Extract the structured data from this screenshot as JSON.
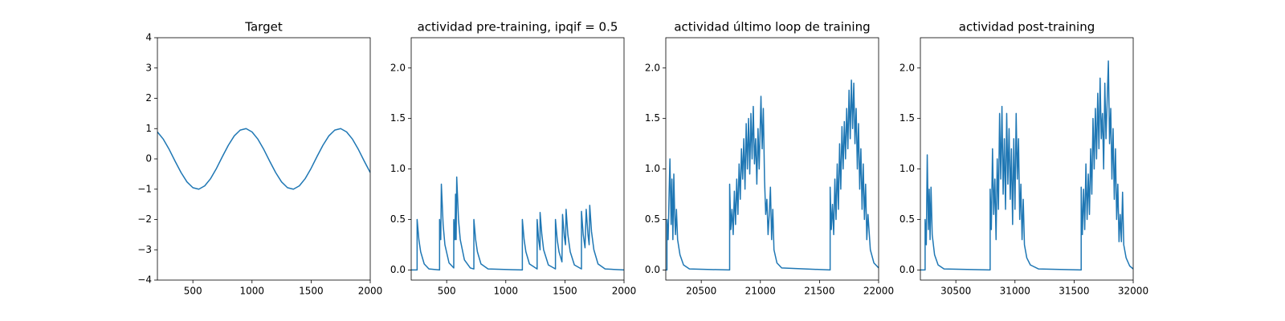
{
  "chart_data": [
    {
      "type": "line",
      "title": "Target",
      "color": "#1f77b4",
      "xlim": [
        200,
        2000
      ],
      "ylim": [
        -4,
        4
      ],
      "xticks": [
        500,
        1000,
        1500,
        2000
      ],
      "yticks": [
        {
          "value": -4,
          "label": "−4"
        },
        {
          "value": -3,
          "label": "−3"
        },
        {
          "value": -2,
          "label": "−2"
        },
        {
          "value": -1,
          "label": "−1"
        },
        0,
        1,
        2,
        3,
        4
      ],
      "x": [
        200,
        250,
        300,
        350,
        400,
        450,
        500,
        550,
        600,
        650,
        700,
        750,
        800,
        850,
        900,
        950,
        1000,
        1050,
        1100,
        1150,
        1200,
        1250,
        1300,
        1350,
        1400,
        1450,
        1500,
        1550,
        1600,
        1650,
        1700,
        1750,
        1800,
        1850,
        1900,
        1950,
        2000
      ],
      "values": [
        0.89,
        0.65,
        0.31,
        -0.08,
        -0.45,
        -0.76,
        -0.95,
        -1.0,
        -0.89,
        -0.65,
        -0.31,
        0.08,
        0.45,
        0.76,
        0.95,
        1.0,
        0.89,
        0.65,
        0.31,
        -0.08,
        -0.45,
        -0.76,
        -0.95,
        -1.0,
        -0.89,
        -0.65,
        -0.31,
        0.08,
        0.45,
        0.76,
        0.95,
        1.0,
        0.89,
        0.65,
        0.31,
        -0.08,
        -0.45
      ]
    },
    {
      "type": "line",
      "title": "actividad pre-training, ipqif = 0.5",
      "color": "#1f77b4",
      "xlim": [
        200,
        2000
      ],
      "ylim": [
        -0.1,
        2.3
      ],
      "xticks": [
        500,
        1000,
        1500,
        2000
      ],
      "yticks": [
        {
          "value": 0,
          "label": "0.0"
        },
        0.5,
        {
          "value": 1,
          "label": "1.0"
        },
        1.5,
        {
          "value": 2,
          "label": "2.0"
        }
      ],
      "x": [
        200,
        250,
        250,
        265,
        280,
        310,
        350,
        440,
        440,
        450,
        455,
        470,
        485,
        520,
        560,
        560,
        570,
        575,
        580,
        585,
        600,
        615,
        650,
        700,
        730,
        730,
        745,
        760,
        790,
        850,
        1140,
        1140,
        1155,
        1170,
        1200,
        1265,
        1265,
        1278,
        1290,
        1290,
        1305,
        1320,
        1360,
        1420,
        1420,
        1435,
        1450,
        1475,
        1480,
        1495,
        1505,
        1510,
        1525,
        1545,
        1580,
        1640,
        1640,
        1655,
        1670,
        1680,
        1695,
        1705,
        1710,
        1725,
        1745,
        1780,
        1840,
        2000
      ],
      "values": [
        0,
        0,
        0.5,
        0.3,
        0.18,
        0.06,
        0.01,
        0,
        0.5,
        0.3,
        0.85,
        0.45,
        0.25,
        0.07,
        0.02,
        0.5,
        0.3,
        0.75,
        0.3,
        0.92,
        0.5,
        0.3,
        0.1,
        0.02,
        0.01,
        0.5,
        0.3,
        0.18,
        0.06,
        0.01,
        0,
        0.5,
        0.3,
        0.18,
        0.06,
        0.01,
        0.5,
        0.3,
        0.2,
        0.57,
        0.35,
        0.2,
        0.05,
        0.01,
        0.5,
        0.3,
        0.18,
        0.08,
        0.55,
        0.33,
        0.25,
        0.6,
        0.35,
        0.18,
        0.05,
        0.01,
        0.58,
        0.35,
        0.22,
        0.6,
        0.35,
        0.25,
        0.64,
        0.38,
        0.2,
        0.06,
        0.01,
        0
      ]
    },
    {
      "type": "line",
      "title": "actividad último loop de training",
      "color": "#1f77b4",
      "xlim": [
        20200,
        22000
      ],
      "ylim": [
        -0.1,
        2.3
      ],
      "xticks": [
        20500,
        21000,
        21500,
        22000
      ],
      "yticks": [
        {
          "value": 0,
          "label": "0.0"
        },
        0.5,
        {
          "value": 1,
          "label": "1.0"
        },
        1.5,
        {
          "value": 2,
          "label": "2.0"
        }
      ],
      "x": [
        20200,
        20210,
        20210,
        20220,
        20228,
        20235,
        20245,
        20252,
        20260,
        20268,
        20275,
        20282,
        20290,
        20300,
        20320,
        20350,
        20400,
        20740,
        20740,
        20750,
        20760,
        20770,
        20780,
        20790,
        20800,
        20810,
        20820,
        20830,
        20840,
        20850,
        20860,
        20870,
        20880,
        20890,
        20900,
        20910,
        20920,
        20930,
        20940,
        20950,
        20960,
        20970,
        20980,
        20990,
        21005,
        21015,
        21025,
        21035,
        21045,
        21055,
        21065,
        21075,
        21085,
        21095,
        21105,
        21115,
        21140,
        21180,
        21590,
        21590,
        21600,
        21610,
        21620,
        21630,
        21640,
        21650,
        21660,
        21670,
        21680,
        21690,
        21700,
        21710,
        21720,
        21730,
        21740,
        21750,
        21760,
        21770,
        21780,
        21790,
        21800,
        21810,
        21820,
        21830,
        21840,
        21850,
        21860,
        21870,
        21880,
        21890,
        21900,
        21910,
        21930,
        21960,
        22000
      ],
      "values": [
        0,
        0,
        0.5,
        0.3,
        0.75,
        1.1,
        0.45,
        0.9,
        0.3,
        0.95,
        0.55,
        0.35,
        0.6,
        0.3,
        0.15,
        0.05,
        0.01,
        0,
        0.85,
        0.4,
        0.6,
        0.35,
        0.78,
        0.45,
        0.9,
        0.55,
        1.05,
        0.7,
        1.2,
        0.9,
        1.3,
        0.8,
        1.45,
        1.0,
        1.5,
        0.95,
        1.55,
        1.1,
        1.62,
        1.05,
        1.3,
        0.85,
        1.4,
        1.0,
        1.72,
        1.2,
        1.6,
        0.9,
        0.55,
        0.7,
        0.35,
        0.55,
        0.82,
        0.3,
        0.6,
        0.2,
        0.07,
        0.02,
        0,
        0.82,
        0.4,
        0.65,
        0.35,
        0.9,
        0.5,
        1.05,
        0.6,
        1.25,
        0.8,
        1.42,
        1.0,
        1.47,
        1.1,
        1.6,
        1.2,
        1.78,
        1.3,
        1.88,
        1.4,
        1.85,
        1.25,
        1.6,
        1.0,
        1.45,
        0.8,
        1.2,
        0.6,
        1.05,
        0.5,
        0.85,
        0.3,
        0.55,
        0.2,
        0.07,
        0.02
      ]
    },
    {
      "type": "line",
      "title": "actividad post-training",
      "color": "#1f77b4",
      "xlim": [
        30200,
        32000
      ],
      "ylim": [
        -0.1,
        2.3
      ],
      "xticks": [
        30500,
        31000,
        31500,
        32000
      ],
      "yticks": [
        {
          "value": 0,
          "label": "0.0"
        },
        0.5,
        {
          "value": 1,
          "label": "1.0"
        },
        1.5,
        {
          "value": 2,
          "label": "2.0"
        }
      ],
      "x": [
        30200,
        30240,
        30240,
        30250,
        30258,
        30268,
        30275,
        30282,
        30290,
        30300,
        30320,
        30350,
        30400,
        30790,
        30790,
        30800,
        30810,
        30820,
        30830,
        30840,
        30850,
        30860,
        30870,
        30880,
        30890,
        30900,
        30910,
        30920,
        30930,
        30940,
        30950,
        30960,
        30970,
        30980,
        30990,
        31000,
        31010,
        31020,
        31030,
        31040,
        31050,
        31060,
        31070,
        31080,
        31100,
        31130,
        31200,
        31560,
        31560,
        31570,
        31580,
        31590,
        31600,
        31610,
        31620,
        31630,
        31640,
        31650,
        31660,
        31670,
        31680,
        31690,
        31700,
        31710,
        31720,
        31730,
        31740,
        31750,
        31760,
        31770,
        31790,
        31800,
        31810,
        31820,
        31830,
        31840,
        31850,
        31860,
        31870,
        31880,
        31890,
        31900,
        31910,
        31920,
        31940,
        31970,
        32000
      ],
      "values": [
        0,
        0,
        0.5,
        0.25,
        1.14,
        0.4,
        0.8,
        0.3,
        0.82,
        0.35,
        0.15,
        0.05,
        0.01,
        0,
        0.8,
        0.4,
        1.2,
        0.55,
        0.9,
        0.3,
        1.1,
        0.6,
        1.55,
        0.9,
        1.62,
        0.75,
        1.3,
        0.6,
        1.55,
        0.85,
        1.4,
        0.7,
        1.2,
        0.45,
        1.3,
        0.6,
        1.55,
        0.9,
        1.3,
        0.5,
        0.85,
        0.3,
        0.7,
        0.25,
        0.12,
        0.05,
        0.01,
        0,
        0.82,
        0.35,
        0.8,
        0.4,
        1.05,
        0.5,
        0.95,
        0.55,
        1.2,
        0.75,
        1.5,
        1.0,
        1.6,
        1.1,
        1.75,
        1.2,
        1.9,
        1.3,
        1.55,
        1.0,
        1.85,
        1.3,
        2.07,
        1.25,
        1.6,
        0.9,
        1.4,
        0.7,
        1.2,
        0.5,
        0.85,
        0.28,
        0.55,
        0.28,
        0.77,
        0.25,
        0.12,
        0.04,
        0.01
      ]
    }
  ]
}
